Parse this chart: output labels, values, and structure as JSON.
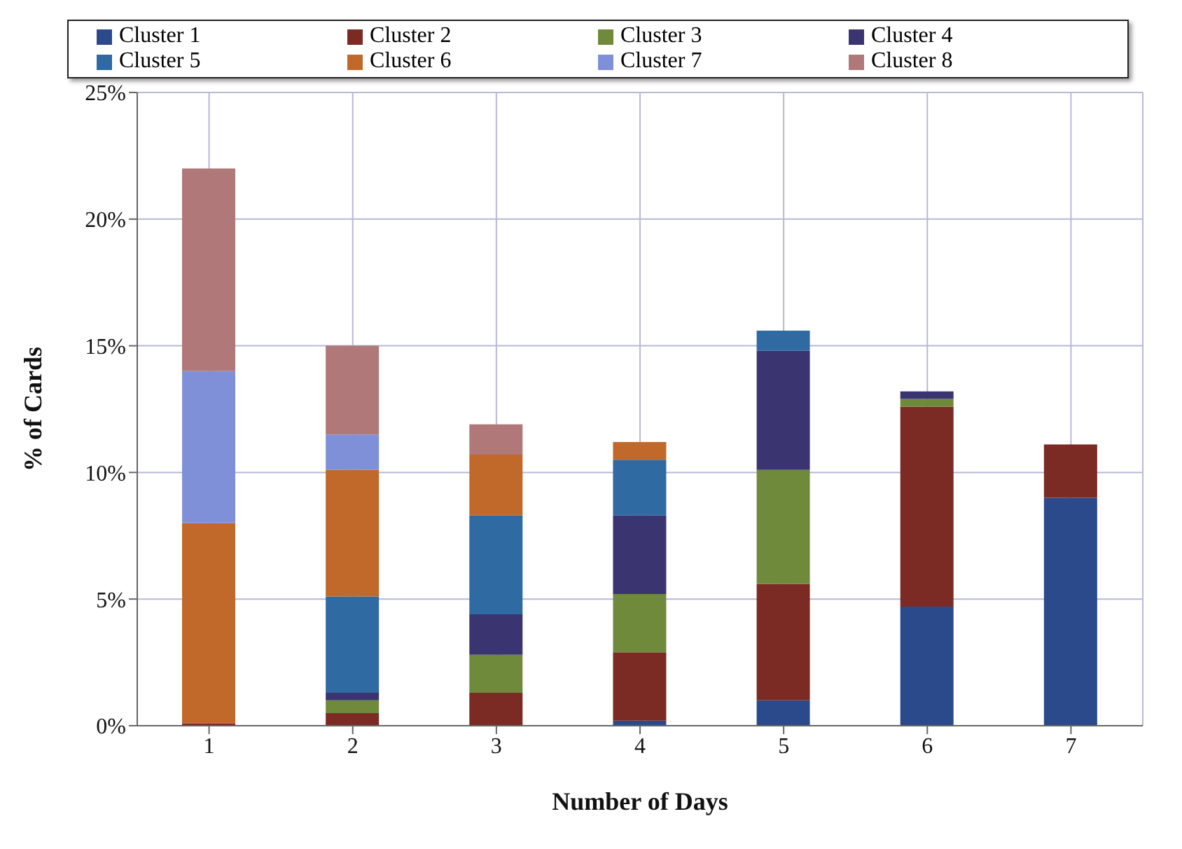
{
  "chart_data": {
    "type": "bar",
    "stacked": true,
    "xlabel": "Number of Days",
    "ylabel": "% of Cards",
    "categories": [
      "1",
      "2",
      "3",
      "4",
      "5",
      "6",
      "7"
    ],
    "series": [
      {
        "name": "Cluster 1",
        "color": "#2b4a8c",
        "values": [
          0,
          0,
          0,
          0.2,
          1.0,
          4.7,
          9.0
        ]
      },
      {
        "name": "Cluster 2",
        "color": "#7b2a24",
        "values": [
          0.1,
          0.5,
          1.3,
          2.7,
          4.6,
          7.9,
          2.1
        ]
      },
      {
        "name": "Cluster 3",
        "color": "#6f8a3a",
        "values": [
          0,
          0.5,
          1.5,
          2.3,
          4.5,
          0.3,
          0
        ]
      },
      {
        "name": "Cluster 4",
        "color": "#3a3470",
        "values": [
          0,
          0.3,
          1.6,
          3.1,
          4.7,
          0.3,
          0
        ]
      },
      {
        "name": "Cluster 5",
        "color": "#2f6aa3",
        "values": [
          0,
          3.8,
          3.9,
          2.2,
          0.8,
          0,
          0
        ]
      },
      {
        "name": "Cluster 6",
        "color": "#c0692b",
        "values": [
          7.9,
          5.0,
          2.4,
          0.7,
          0,
          0,
          0
        ]
      },
      {
        "name": "Cluster 7",
        "color": "#8090d8",
        "values": [
          6.0,
          1.4,
          0,
          0,
          0,
          0,
          0
        ]
      },
      {
        "name": "Cluster 8",
        "color": "#b07878",
        "values": [
          8.0,
          3.5,
          1.2,
          0,
          0,
          0,
          0
        ]
      }
    ],
    "ylim": [
      0,
      25
    ],
    "yticks": [
      {
        "value": 0,
        "label": "0%"
      },
      {
        "value": 5,
        "label": "5%"
      },
      {
        "value": 10,
        "label": "10%"
      },
      {
        "value": 15,
        "label": "15%"
      },
      {
        "value": 20,
        "label": "20%"
      },
      {
        "value": 25,
        "label": "25%"
      }
    ],
    "grid": true,
    "legend": "top"
  }
}
